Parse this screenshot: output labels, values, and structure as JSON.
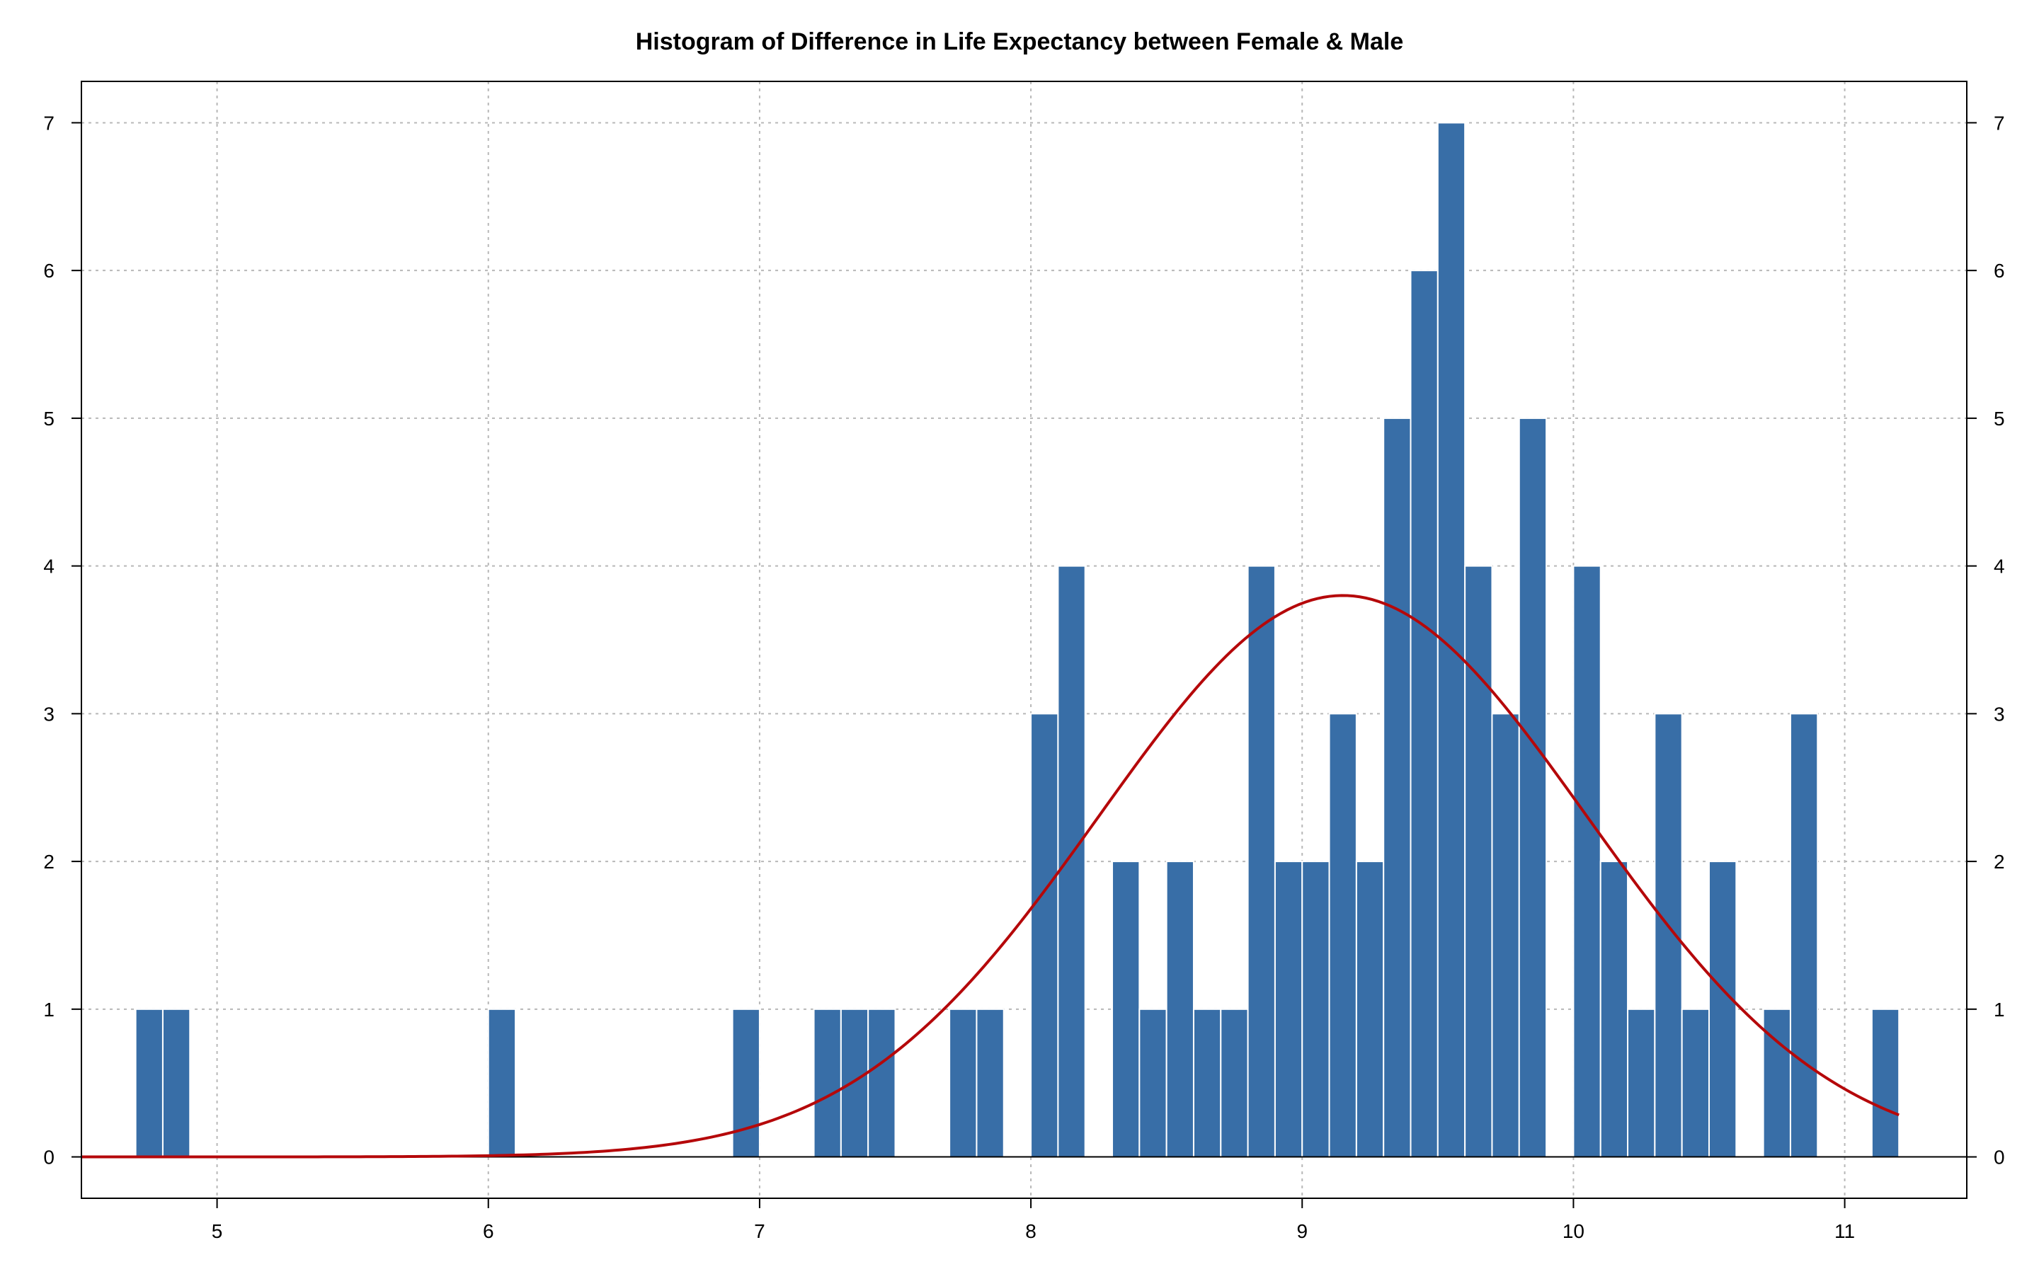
{
  "chart_data": {
    "type": "bar",
    "title": "Histogram of Difference in Life Expectancy between Female & Male",
    "xlabel": "",
    "ylabel": "",
    "xlim": [
      4.5,
      11.45
    ],
    "ylim": [
      -0.28,
      7.28
    ],
    "bin_width": 0.1,
    "bins": [
      {
        "x0": 4.7,
        "count": 1
      },
      {
        "x0": 4.8,
        "count": 1
      },
      {
        "x0": 6.0,
        "count": 1
      },
      {
        "x0": 6.9,
        "count": 1
      },
      {
        "x0": 7.2,
        "count": 1
      },
      {
        "x0": 7.3,
        "count": 1
      },
      {
        "x0": 7.4,
        "count": 1
      },
      {
        "x0": 7.7,
        "count": 1
      },
      {
        "x0": 7.8,
        "count": 1
      },
      {
        "x0": 8.0,
        "count": 3
      },
      {
        "x0": 8.1,
        "count": 4
      },
      {
        "x0": 8.3,
        "count": 2
      },
      {
        "x0": 8.4,
        "count": 1
      },
      {
        "x0": 8.5,
        "count": 2
      },
      {
        "x0": 8.6,
        "count": 1
      },
      {
        "x0": 8.7,
        "count": 1
      },
      {
        "x0": 8.8,
        "count": 4
      },
      {
        "x0": 8.9,
        "count": 2
      },
      {
        "x0": 9.0,
        "count": 2
      },
      {
        "x0": 9.1,
        "count": 3
      },
      {
        "x0": 9.2,
        "count": 2
      },
      {
        "x0": 9.3,
        "count": 5
      },
      {
        "x0": 9.4,
        "count": 6
      },
      {
        "x0": 9.5,
        "count": 7
      },
      {
        "x0": 9.6,
        "count": 4
      },
      {
        "x0": 9.7,
        "count": 3
      },
      {
        "x0": 9.8,
        "count": 5
      },
      {
        "x0": 10.0,
        "count": 4
      },
      {
        "x0": 10.1,
        "count": 2
      },
      {
        "x0": 10.2,
        "count": 1
      },
      {
        "x0": 10.3,
        "count": 3
      },
      {
        "x0": 10.4,
        "count": 1
      },
      {
        "x0": 10.5,
        "count": 2
      },
      {
        "x0": 10.7,
        "count": 1
      },
      {
        "x0": 10.8,
        "count": 3
      },
      {
        "x0": 11.1,
        "count": 1
      }
    ],
    "x_ticks": [
      5,
      6,
      7,
      8,
      9,
      10,
      11
    ],
    "y_ticks": [
      0,
      1,
      2,
      3,
      4,
      5,
      6,
      7
    ],
    "density_curve": {
      "type": "normal",
      "mean": 9.15,
      "sd": 0.9,
      "peak": 3.8,
      "x_range": [
        4.5,
        11.2
      ]
    },
    "grid": true,
    "legend": "none",
    "colors": {
      "bar": "#386ea7",
      "bar_border": "#ffffff",
      "curve": "#b5080a",
      "grid": "#b8b8b8"
    }
  }
}
